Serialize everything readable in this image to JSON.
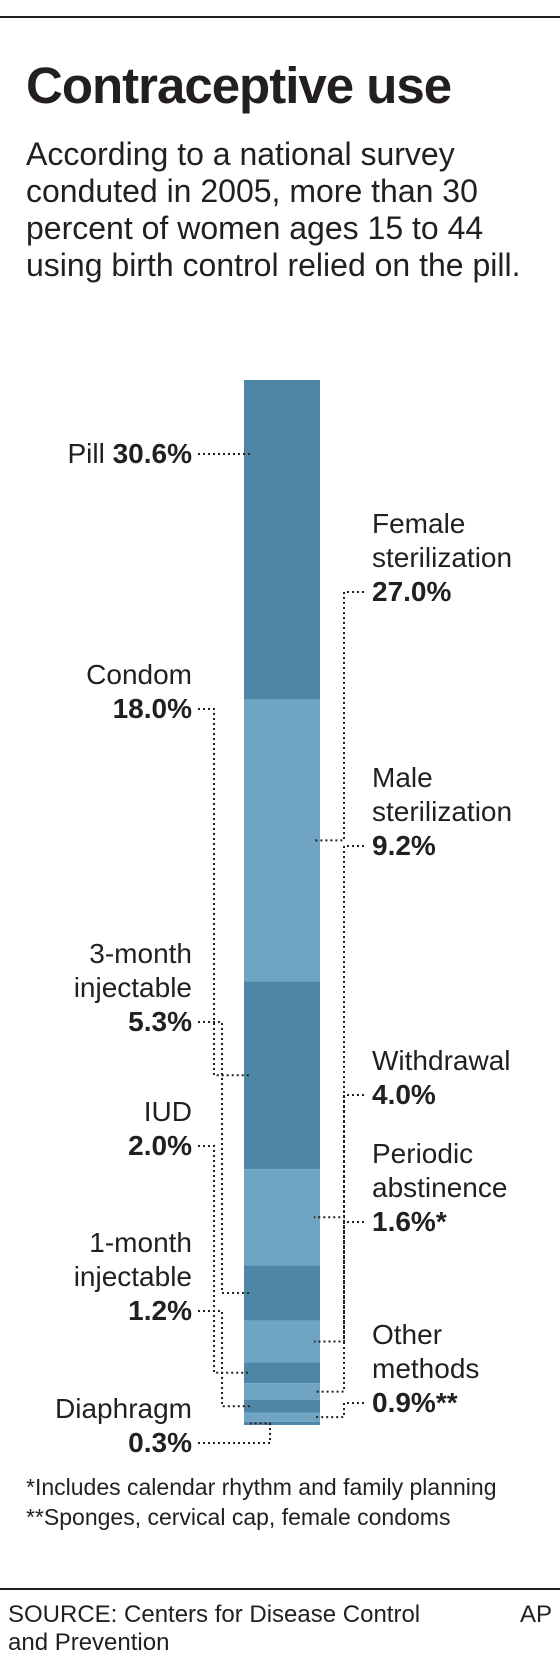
{
  "header": {
    "title": "Contraceptive use",
    "subtitle": "According to a national survey conduted in 2005, more than 30 percent of women ages 15 to 44 using birth control relied on the pill."
  },
  "chart_data": {
    "type": "bar",
    "orientation": "vertical-stacked-single",
    "unit": "%",
    "segments": [
      {
        "label": "Pill",
        "value_text": "30.6%",
        "value": 30.6,
        "color": "#4f86a7",
        "side": "left"
      },
      {
        "label": "Female sterilization",
        "value_text": "27.0%",
        "value": 27.0,
        "color": "#6fa5c2",
        "side": "right"
      },
      {
        "label": "Condom",
        "value_text": "18.0%",
        "value": 18.0,
        "color": "#4f86a7",
        "side": "left"
      },
      {
        "label": "Male sterilization",
        "value_text": "9.2%",
        "value": 9.2,
        "color": "#6fa5c2",
        "side": "right"
      },
      {
        "label": "3-month injectable",
        "value_text": "5.3%",
        "value": 5.3,
        "color": "#4f86a7",
        "side": "left"
      },
      {
        "label": "Withdrawal",
        "value_text": "4.0%",
        "value": 4.0,
        "color": "#6fa5c2",
        "side": "right"
      },
      {
        "label": "IUD",
        "value_text": "2.0%",
        "value": 2.0,
        "color": "#4f86a7",
        "side": "left"
      },
      {
        "label": "Periodic abstinence",
        "value_text": "1.6%*",
        "value": 1.6,
        "color": "#6fa5c2",
        "side": "right"
      },
      {
        "label": "1-month injectable",
        "value_text": "1.2%",
        "value": 1.2,
        "color": "#4f86a7",
        "side": "left"
      },
      {
        "label": "Other methods",
        "value_text": "0.9%**",
        "value": 0.9,
        "color": "#6fa5c2",
        "side": "right"
      },
      {
        "label": "Diaphragm",
        "value_text": "0.3%",
        "value": 0.3,
        "color": "#4f86a7",
        "side": "left"
      }
    ]
  },
  "footnote": "*Includes calendar rhythm and family planning **Sponges, cervical cap, female condoms",
  "source": "SOURCE: Centers for Disease Control and Prevention",
  "credit": "AP"
}
